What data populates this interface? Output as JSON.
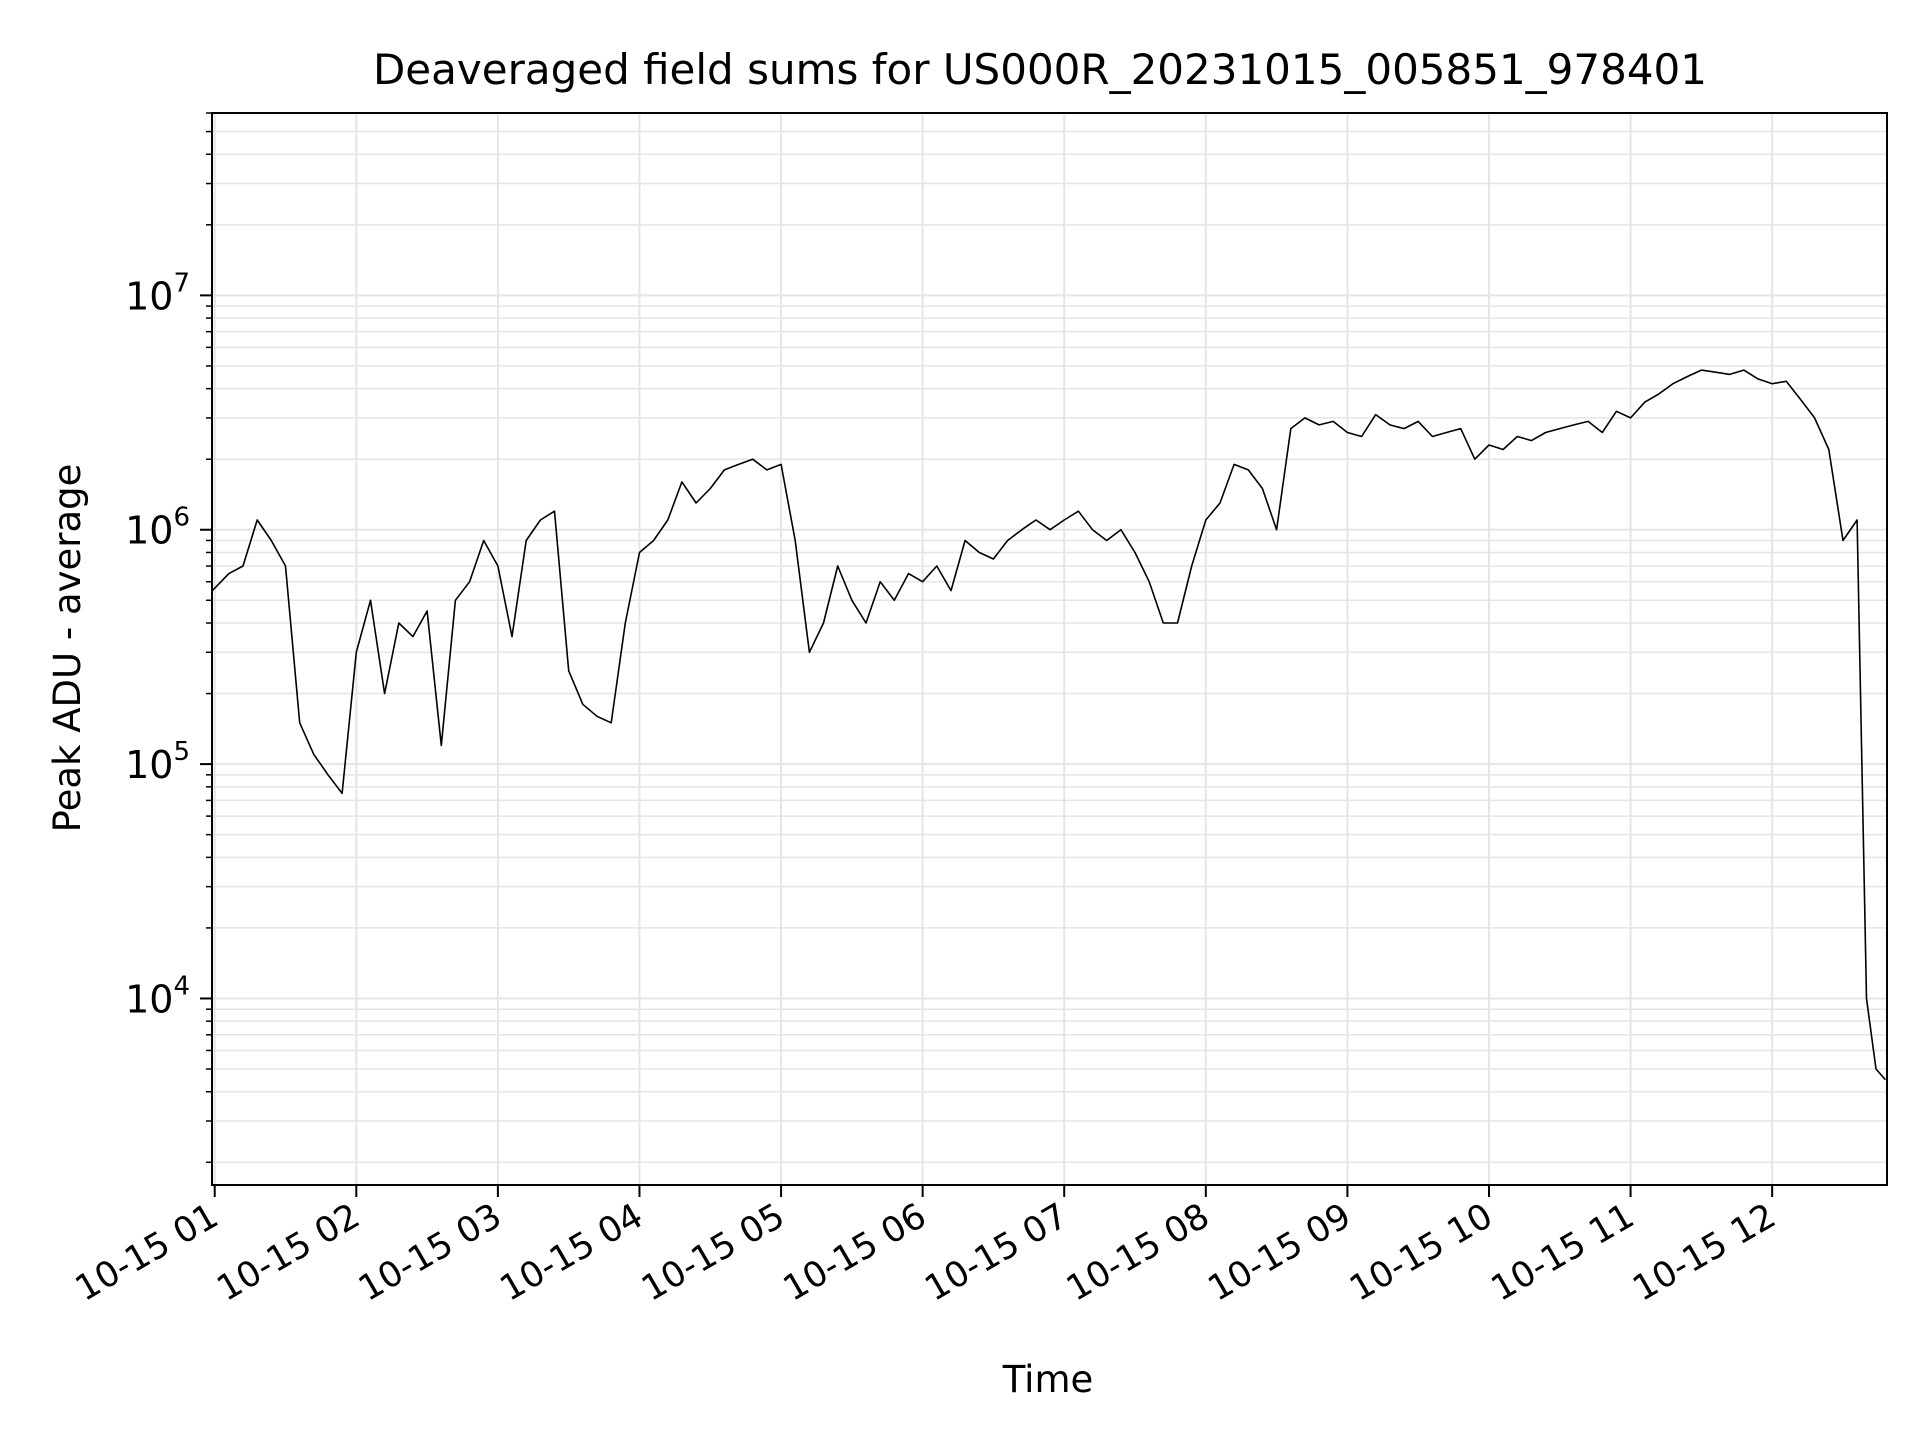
{
  "chart_data": {
    "type": "line",
    "title": "Deaveraged field sums for US000R_20231015_005851_978401",
    "xlabel": "Time",
    "ylabel": "Peak ADU - average",
    "yscale": "log",
    "ylim": [
      1600,
      60000000
    ],
    "xlim": [
      "2023-10-15 00:58:51",
      "2023-10-15 12:48:40"
    ],
    "grid": true,
    "line_color": "#000000",
    "grid_color": "#e5e5e5",
    "x_ticks": [
      {
        "label": "10-15 01",
        "value": "2023-10-15 01:00"
      },
      {
        "label": "10-15 02",
        "value": "2023-10-15 02:00"
      },
      {
        "label": "10-15 03",
        "value": "2023-10-15 03:00"
      },
      {
        "label": "10-15 04",
        "value": "2023-10-15 04:00"
      },
      {
        "label": "10-15 05",
        "value": "2023-10-15 05:00"
      },
      {
        "label": "10-15 06",
        "value": "2023-10-15 06:00"
      },
      {
        "label": "10-15 07",
        "value": "2023-10-15 07:00"
      },
      {
        "label": "10-15 08",
        "value": "2023-10-15 08:00"
      },
      {
        "label": "10-15 09",
        "value": "2023-10-15 09:00"
      },
      {
        "label": "10-15 10",
        "value": "2023-10-15 10:00"
      },
      {
        "label": "10-15 11",
        "value": "2023-10-15 11:00"
      },
      {
        "label": "10-15 12",
        "value": "2023-10-15 12:00"
      }
    ],
    "y_ticks": [
      {
        "base": "10",
        "exp": "4",
        "value": 10000
      },
      {
        "base": "10",
        "exp": "5",
        "value": 100000
      },
      {
        "base": "10",
        "exp": "6",
        "value": 1000000
      },
      {
        "base": "10",
        "exp": "7",
        "value": 10000000
      }
    ],
    "series": [
      {
        "x": [
          "2023-10-15 00:59",
          "2023-10-15 01:06",
          "2023-10-15 01:12",
          "2023-10-15 01:18",
          "2023-10-15 01:24",
          "2023-10-15 01:30",
          "2023-10-15 01:36",
          "2023-10-15 01:42",
          "2023-10-15 01:48",
          "2023-10-15 01:54",
          "2023-10-15 02:00",
          "2023-10-15 02:06",
          "2023-10-15 02:12",
          "2023-10-15 02:18",
          "2023-10-15 02:24",
          "2023-10-15 02:30",
          "2023-10-15 02:36",
          "2023-10-15 02:42",
          "2023-10-15 02:48",
          "2023-10-15 02:54",
          "2023-10-15 03:00",
          "2023-10-15 03:06",
          "2023-10-15 03:12",
          "2023-10-15 03:18",
          "2023-10-15 03:24",
          "2023-10-15 03:30",
          "2023-10-15 03:36",
          "2023-10-15 03:42",
          "2023-10-15 03:48",
          "2023-10-15 03:54",
          "2023-10-15 04:00",
          "2023-10-15 04:06",
          "2023-10-15 04:12",
          "2023-10-15 04:18",
          "2023-10-15 04:24",
          "2023-10-15 04:30",
          "2023-10-15 04:36",
          "2023-10-15 04:42",
          "2023-10-15 04:48",
          "2023-10-15 04:54",
          "2023-10-15 05:00",
          "2023-10-15 05:06",
          "2023-10-15 05:12",
          "2023-10-15 05:18",
          "2023-10-15 05:24",
          "2023-10-15 05:30",
          "2023-10-15 05:36",
          "2023-10-15 05:42",
          "2023-10-15 05:48",
          "2023-10-15 05:54",
          "2023-10-15 06:00",
          "2023-10-15 06:06",
          "2023-10-15 06:12",
          "2023-10-15 06:18",
          "2023-10-15 06:24",
          "2023-10-15 06:30",
          "2023-10-15 06:36",
          "2023-10-15 06:42",
          "2023-10-15 06:48",
          "2023-10-15 06:54",
          "2023-10-15 07:00",
          "2023-10-15 07:06",
          "2023-10-15 07:12",
          "2023-10-15 07:18",
          "2023-10-15 07:24",
          "2023-10-15 07:30",
          "2023-10-15 07:36",
          "2023-10-15 07:42",
          "2023-10-15 07:48",
          "2023-10-15 07:54",
          "2023-10-15 08:00",
          "2023-10-15 08:06",
          "2023-10-15 08:12",
          "2023-10-15 08:18",
          "2023-10-15 08:24",
          "2023-10-15 08:30",
          "2023-10-15 08:36",
          "2023-10-15 08:42",
          "2023-10-15 08:48",
          "2023-10-15 08:54",
          "2023-10-15 09:00",
          "2023-10-15 09:06",
          "2023-10-15 09:12",
          "2023-10-15 09:18",
          "2023-10-15 09:24",
          "2023-10-15 09:30",
          "2023-10-15 09:36",
          "2023-10-15 09:42",
          "2023-10-15 09:48",
          "2023-10-15 09:54",
          "2023-10-15 10:00",
          "2023-10-15 10:06",
          "2023-10-15 10:12",
          "2023-10-15 10:18",
          "2023-10-15 10:24",
          "2023-10-15 10:30",
          "2023-10-15 10:36",
          "2023-10-15 10:42",
          "2023-10-15 10:48",
          "2023-10-15 10:54",
          "2023-10-15 11:00",
          "2023-10-15 11:06",
          "2023-10-15 11:12",
          "2023-10-15 11:18",
          "2023-10-15 11:24",
          "2023-10-15 11:30",
          "2023-10-15 11:36",
          "2023-10-15 11:42",
          "2023-10-15 11:48",
          "2023-10-15 11:54",
          "2023-10-15 12:00",
          "2023-10-15 12:06",
          "2023-10-15 12:12",
          "2023-10-15 12:18",
          "2023-10-15 12:24",
          "2023-10-15 12:30",
          "2023-10-15 12:36",
          "2023-10-15 12:40",
          "2023-10-15 12:44",
          "2023-10-15 12:48"
        ],
        "y": [
          550000,
          650000,
          700000,
          1100000,
          900000,
          700000,
          150000,
          110000,
          90000,
          75000,
          300000,
          500000,
          200000,
          400000,
          350000,
          450000,
          120000,
          500000,
          600000,
          900000,
          700000,
          350000,
          900000,
          1100000,
          1200000,
          250000,
          180000,
          160000,
          150000,
          400000,
          800000,
          900000,
          1100000,
          1600000,
          1300000,
          1500000,
          1800000,
          1900000,
          2000000,
          1800000,
          1900000,
          900000,
          300000,
          400000,
          700000,
          500000,
          400000,
          600000,
          500000,
          650000,
          600000,
          700000,
          550000,
          900000,
          800000,
          750000,
          900000,
          1000000,
          1100000,
          1000000,
          1100000,
          1200000,
          1000000,
          900000,
          1000000,
          800000,
          600000,
          400000,
          400000,
          700000,
          1100000,
          1300000,
          1900000,
          1800000,
          1500000,
          1000000,
          2700000,
          3000000,
          2800000,
          2900000,
          2600000,
          2500000,
          3100000,
          2800000,
          2700000,
          2900000,
          2500000,
          2600000,
          2700000,
          2000000,
          2300000,
          2200000,
          2500000,
          2400000,
          2600000,
          2700000,
          2800000,
          2900000,
          2600000,
          3200000,
          3000000,
          3500000,
          3800000,
          4200000,
          4500000,
          4800000,
          4700000,
          4600000,
          4800000,
          4400000,
          4200000,
          4300000,
          3600000,
          3000000,
          2200000,
          900000,
          1100000,
          10000,
          5000,
          4500
        ]
      }
    ]
  }
}
